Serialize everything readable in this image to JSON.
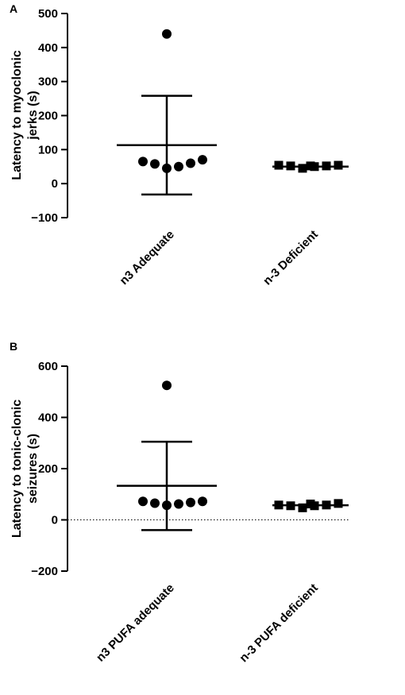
{
  "chart_data": [
    {
      "panel": "A",
      "type": "scatter",
      "ylabel_lines": [
        "Latency to myoclonic",
        "jerks (s)"
      ],
      "categories": [
        "n3 Adequate",
        "n-3 Deficient"
      ],
      "ylim": [
        -100,
        500
      ],
      "yticks": [
        -100,
        0,
        100,
        200,
        300,
        400,
        500
      ],
      "zero_line": false,
      "series": [
        {
          "category": "n3 Adequate",
          "marker": "circle",
          "points": [
            440,
            65,
            58,
            45,
            50,
            60,
            70
          ],
          "mean": 113,
          "err_upper": 258,
          "err_lower": -32
        },
        {
          "category": "n-3 Deficient",
          "marker": "square",
          "points": [
            52,
            54,
            52,
            45,
            50,
            52,
            54
          ],
          "mean": 50,
          "err_upper": null,
          "err_lower": null
        }
      ]
    },
    {
      "panel": "B",
      "type": "scatter",
      "ylabel_lines": [
        "Latency to tonic-clonic",
        "seizures (s)"
      ],
      "categories": [
        "n3 PUFA adequate",
        "n-3 PUFA deficient"
      ],
      "ylim": [
        -200,
        600
      ],
      "yticks": [
        -200,
        0,
        200,
        400,
        600
      ],
      "zero_line": true,
      "series": [
        {
          "category": "n3 PUFA adequate",
          "marker": "circle",
          "points": [
            525,
            72,
            65,
            57,
            62,
            68,
            72
          ],
          "mean": 133,
          "err_upper": 305,
          "err_lower": -40
        },
        {
          "category": "n-3 PUFA deficient",
          "marker": "square",
          "points": [
            62,
            58,
            55,
            47,
            55,
            58,
            64
          ],
          "mean": 57,
          "err_upper": null,
          "err_lower": null
        }
      ]
    }
  ]
}
